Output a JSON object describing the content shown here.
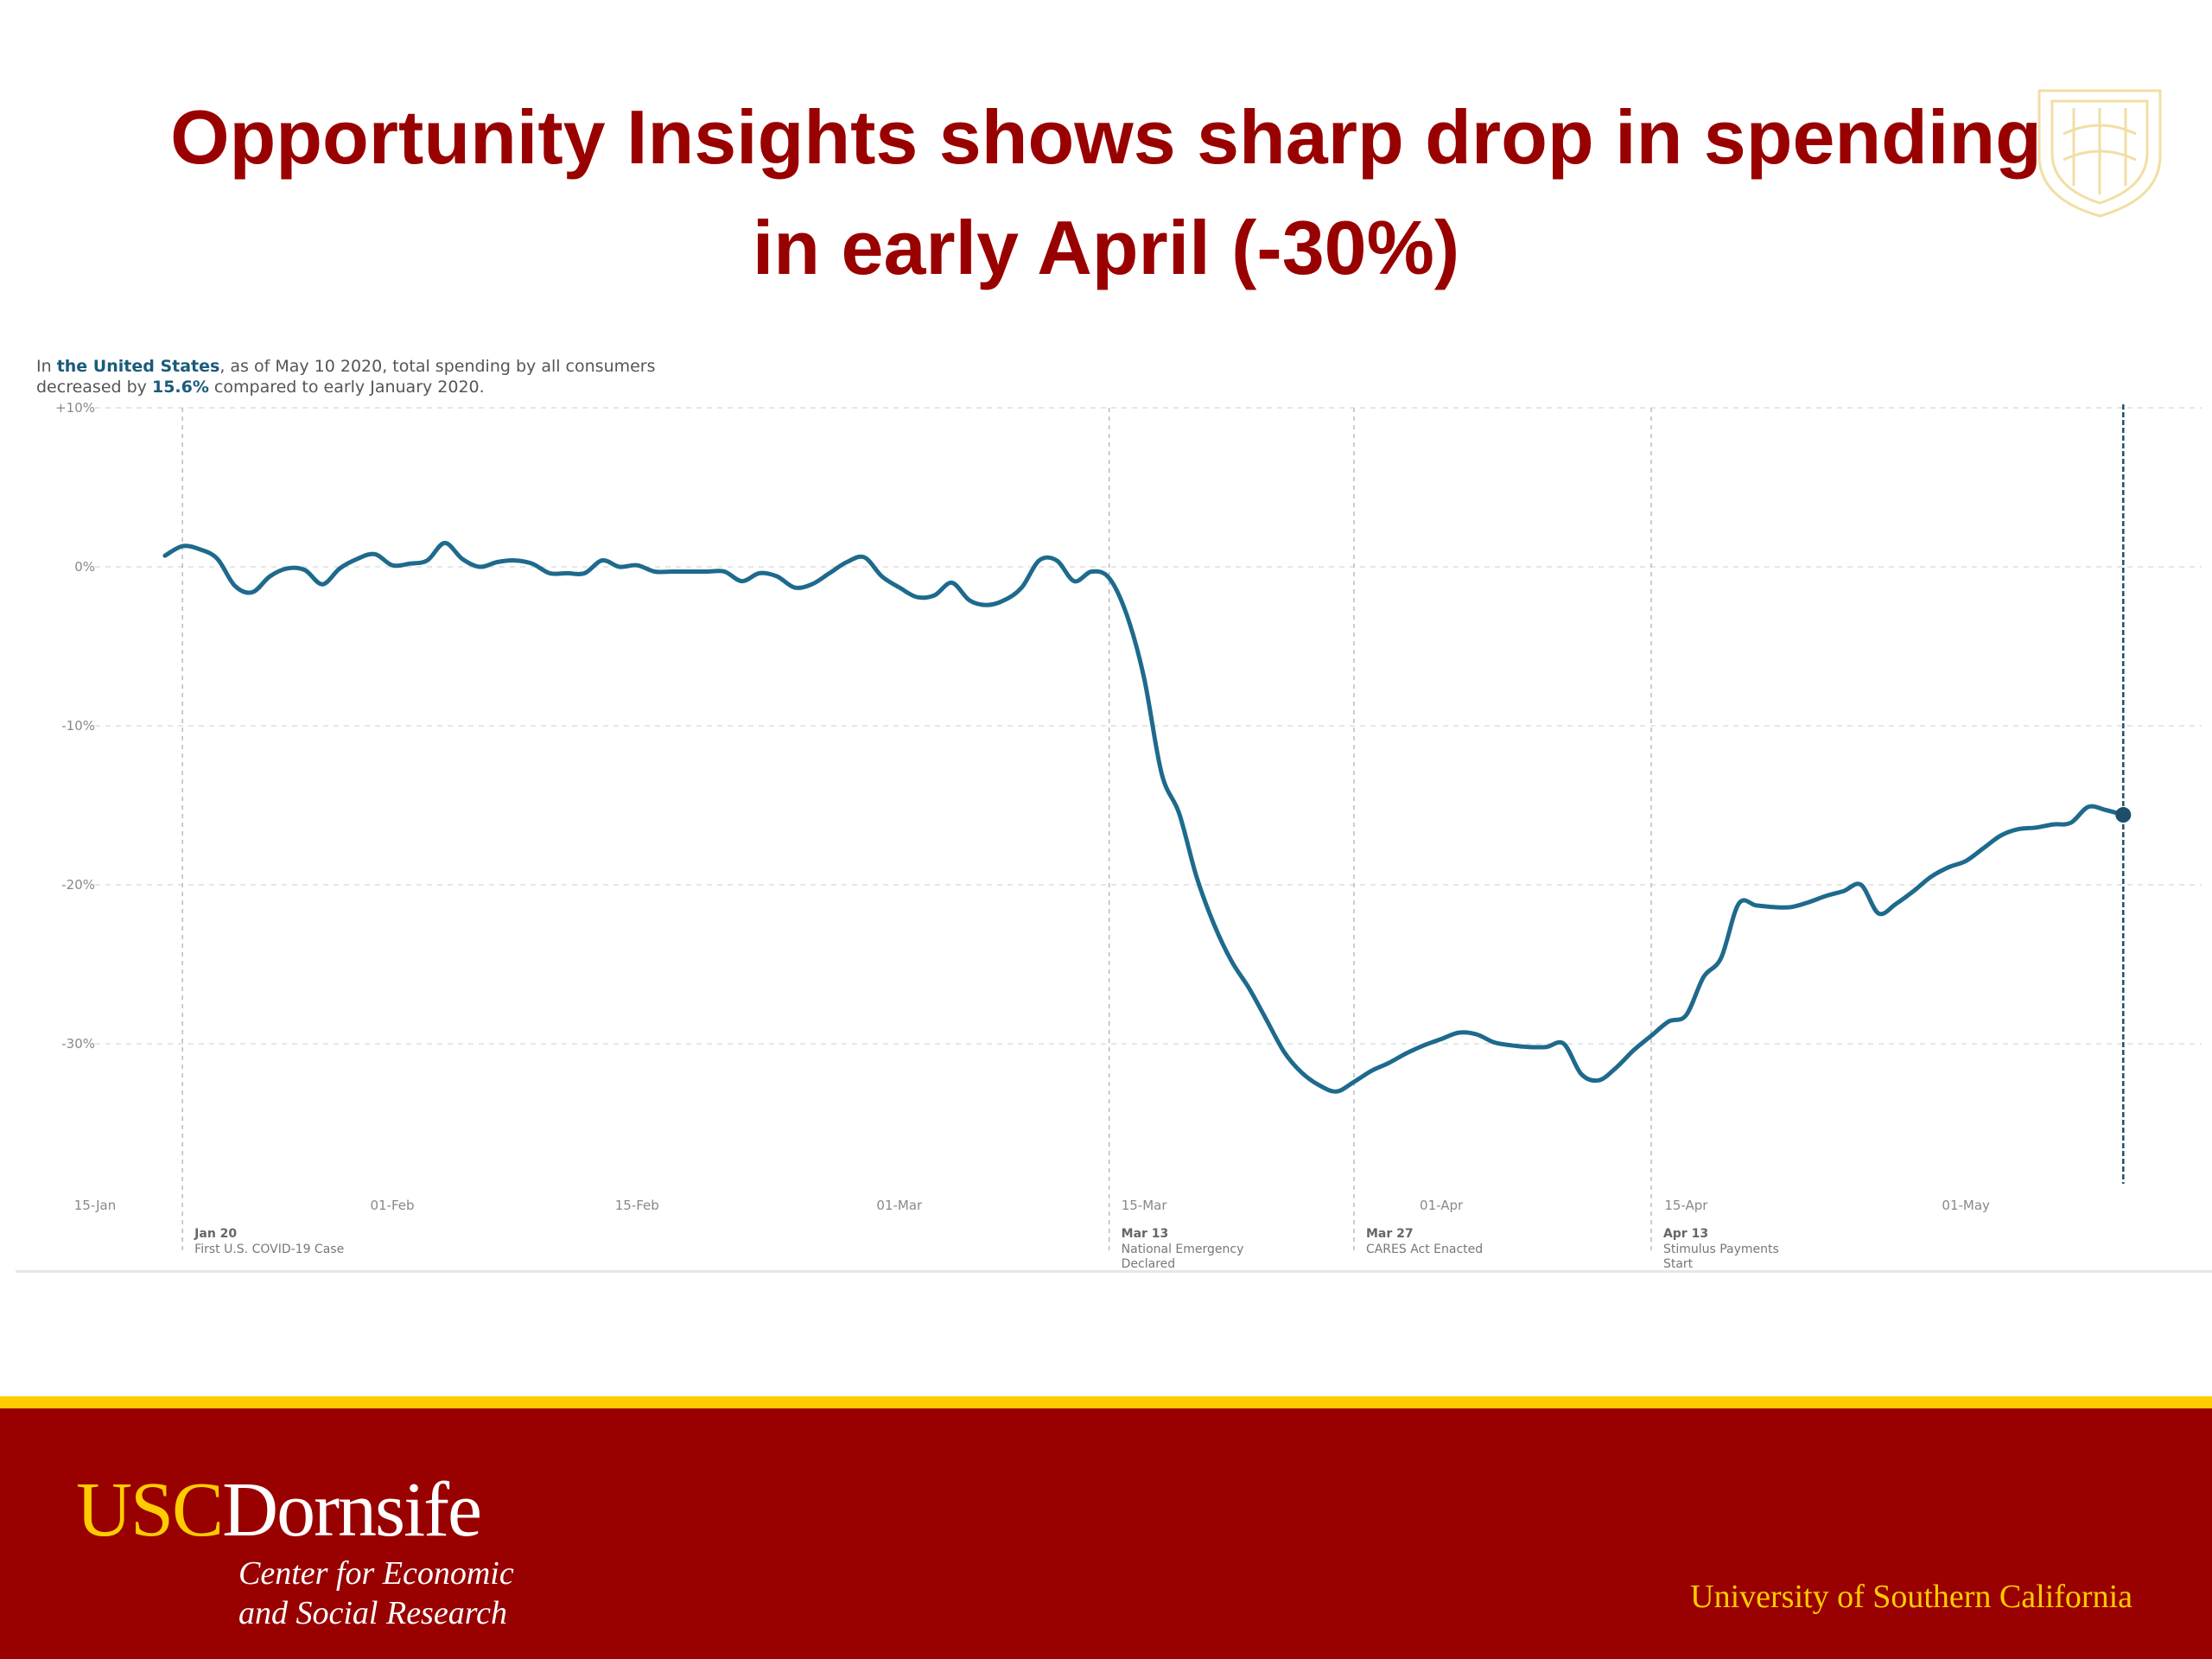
{
  "slide": {
    "title_line1": "Opportunity Insights shows sharp drop in spending",
    "title_line2": "in early April (-30%)"
  },
  "chart_intro": {
    "part1": "In ",
    "region": "the United States",
    "part2": ", as of May 10 2020, total spending by all consumers",
    "part3": "decreased by ",
    "pct": "15.6%",
    "part4": " compared to early January 2020."
  },
  "chart_data": {
    "type": "line",
    "title": "",
    "xlabel": "",
    "ylabel": "",
    "ylim": [
      -35,
      10
    ],
    "xlim": [
      "2020-01-15",
      "2020-05-13"
    ],
    "y_ticks": [
      {
        "value": 10,
        "label": "+10%"
      },
      {
        "value": 0,
        "label": "0%"
      },
      {
        "value": -10,
        "label": "-10%"
      },
      {
        "value": -20,
        "label": "-20%"
      },
      {
        "value": -30,
        "label": "-30%"
      }
    ],
    "x_ticks": [
      {
        "date": "2020-01-15",
        "label": "15-Jan"
      },
      {
        "date": "2020-02-01",
        "label": "01-Feb"
      },
      {
        "date": "2020-02-15",
        "label": "15-Feb"
      },
      {
        "date": "2020-03-01",
        "label": "01-Mar"
      },
      {
        "date": "2020-03-15",
        "label": "15-Mar"
      },
      {
        "date": "2020-04-01",
        "label": "01-Apr"
      },
      {
        "date": "2020-04-15",
        "label": "15-Apr"
      },
      {
        "date": "2020-05-01",
        "label": "01-May"
      }
    ],
    "annotations": [
      {
        "date": "2020-01-20",
        "label": "Jan 20",
        "text": [
          "First U.S. COVID-19 Case"
        ]
      },
      {
        "date": "2020-03-13",
        "label": "Mar 13",
        "text": [
          "National Emergency",
          "Declared"
        ]
      },
      {
        "date": "2020-03-27",
        "label": "Mar 27",
        "text": [
          "CARES Act Enacted"
        ]
      },
      {
        "date": "2020-04-13",
        "label": "Apr 13",
        "text": [
          "Stimulus Payments",
          "Start"
        ]
      }
    ],
    "end_marker": {
      "date": "2020-05-10",
      "value": -15.6
    },
    "series": [
      {
        "color": "#1e6a8d",
        "points": [
          [
            "2020-01-19",
            0.7
          ],
          [
            "2020-01-20",
            1.3
          ],
          [
            "2020-01-21",
            1.1
          ],
          [
            "2020-01-22",
            0.5
          ],
          [
            "2020-01-23",
            -1.2
          ],
          [
            "2020-01-24",
            -1.6
          ],
          [
            "2020-01-25",
            -0.6
          ],
          [
            "2020-01-26",
            -0.1
          ],
          [
            "2020-01-27",
            -0.2
          ],
          [
            "2020-01-28",
            -1.1
          ],
          [
            "2020-01-29",
            -0.1
          ],
          [
            "2020-01-30",
            0.5
          ],
          [
            "2020-01-31",
            0.8
          ],
          [
            "2020-02-01",
            0.1
          ],
          [
            "2020-02-02",
            0.2
          ],
          [
            "2020-02-03",
            0.4
          ],
          [
            "2020-02-04",
            1.5
          ],
          [
            "2020-02-05",
            0.5
          ],
          [
            "2020-02-06",
            0.0
          ],
          [
            "2020-02-07",
            0.3
          ],
          [
            "2020-02-08",
            0.4
          ],
          [
            "2020-02-09",
            0.2
          ],
          [
            "2020-02-10",
            -0.4
          ],
          [
            "2020-02-11",
            -0.4
          ],
          [
            "2020-02-12",
            -0.4
          ],
          [
            "2020-02-13",
            0.4
          ],
          [
            "2020-02-14",
            0.0
          ],
          [
            "2020-02-15",
            0.1
          ],
          [
            "2020-02-16",
            -0.3
          ],
          [
            "2020-02-17",
            -0.3
          ],
          [
            "2020-02-18",
            -0.3
          ],
          [
            "2020-02-19",
            -0.3
          ],
          [
            "2020-02-20",
            -0.3
          ],
          [
            "2020-02-21",
            -0.9
          ],
          [
            "2020-02-22",
            -0.4
          ],
          [
            "2020-02-23",
            -0.6
          ],
          [
            "2020-02-24",
            -1.3
          ],
          [
            "2020-02-25",
            -1.1
          ],
          [
            "2020-02-26",
            -0.4
          ],
          [
            "2020-02-27",
            0.3
          ],
          [
            "2020-02-28",
            0.6
          ],
          [
            "2020-02-29",
            -0.6
          ],
          [
            "2020-03-01",
            -1.3
          ],
          [
            "2020-03-02",
            -1.9
          ],
          [
            "2020-03-03",
            -1.8
          ],
          [
            "2020-03-04",
            -1.0
          ],
          [
            "2020-03-05",
            -2.1
          ],
          [
            "2020-03-06",
            -2.4
          ],
          [
            "2020-03-07",
            -2.1
          ],
          [
            "2020-03-08",
            -1.3
          ],
          [
            "2020-03-09",
            0.4
          ],
          [
            "2020-03-10",
            0.4
          ],
          [
            "2020-03-11",
            -0.9
          ],
          [
            "2020-03-12",
            -0.3
          ],
          [
            "2020-03-13",
            -0.7
          ],
          [
            "2020-03-14",
            -3.0
          ],
          [
            "2020-03-15",
            -7.0
          ],
          [
            "2020-03-16",
            -13.0
          ],
          [
            "2020-03-17",
            -15.5
          ],
          [
            "2020-03-18",
            -19.5
          ],
          [
            "2020-03-19",
            -22.5
          ],
          [
            "2020-03-20",
            -24.8
          ],
          [
            "2020-03-21",
            -26.5
          ],
          [
            "2020-03-22",
            -28.5
          ],
          [
            "2020-03-23",
            -30.5
          ],
          [
            "2020-03-24",
            -31.8
          ],
          [
            "2020-03-25",
            -32.6
          ],
          [
            "2020-03-26",
            -33.0
          ],
          [
            "2020-03-27",
            -32.4
          ],
          [
            "2020-03-28",
            -31.7
          ],
          [
            "2020-03-29",
            -31.2
          ],
          [
            "2020-03-30",
            -30.6
          ],
          [
            "2020-03-31",
            -30.1
          ],
          [
            "2020-04-01",
            -29.7
          ],
          [
            "2020-04-02",
            -29.3
          ],
          [
            "2020-04-03",
            -29.4
          ],
          [
            "2020-04-04",
            -29.9
          ],
          [
            "2020-04-05",
            -30.1
          ],
          [
            "2020-04-06",
            -30.2
          ],
          [
            "2020-04-07",
            -30.2
          ],
          [
            "2020-04-08",
            -30.0
          ],
          [
            "2020-04-09",
            -31.9
          ],
          [
            "2020-04-10",
            -32.3
          ],
          [
            "2020-04-11",
            -31.5
          ],
          [
            "2020-04-12",
            -30.4
          ],
          [
            "2020-04-13",
            -29.5
          ],
          [
            "2020-04-14",
            -28.6
          ],
          [
            "2020-04-15",
            -28.2
          ],
          [
            "2020-04-16",
            -25.8
          ],
          [
            "2020-04-17",
            -24.6
          ],
          [
            "2020-04-18",
            -21.2
          ],
          [
            "2020-04-19",
            -21.3
          ],
          [
            "2020-04-20",
            -21.4
          ],
          [
            "2020-04-21",
            -21.4
          ],
          [
            "2020-04-22",
            -21.1
          ],
          [
            "2020-04-23",
            -20.7
          ],
          [
            "2020-04-24",
            -20.4
          ],
          [
            "2020-04-25",
            -20.0
          ],
          [
            "2020-04-26",
            -21.8
          ],
          [
            "2020-04-27",
            -21.2
          ],
          [
            "2020-04-28",
            -20.4
          ],
          [
            "2020-04-29",
            -19.5
          ],
          [
            "2020-04-30",
            -18.9
          ],
          [
            "2020-05-01",
            -18.5
          ],
          [
            "2020-05-02",
            -17.7
          ],
          [
            "2020-05-03",
            -16.9
          ],
          [
            "2020-05-04",
            -16.5
          ],
          [
            "2020-05-05",
            -16.4
          ],
          [
            "2020-05-06",
            -16.2
          ],
          [
            "2020-05-07",
            -16.1
          ],
          [
            "2020-05-08",
            -15.1
          ],
          [
            "2020-05-09",
            -15.3
          ],
          [
            "2020-05-10",
            -15.6
          ]
        ]
      }
    ]
  },
  "colors": {
    "title": "#990000",
    "line": "#1e6a8d",
    "footer_bg": "#990000",
    "footer_stripe": "#ffcc00",
    "gold": "#ffcc00",
    "seal": "#e8c45a"
  },
  "seal_icon": "usc-seal-icon",
  "footer": {
    "brand_usc": "USC",
    "brand_dornsife": "Dornsife",
    "center_line1": "Center for Economic",
    "center_line2": "and Social Research",
    "university": "University of Southern California"
  }
}
